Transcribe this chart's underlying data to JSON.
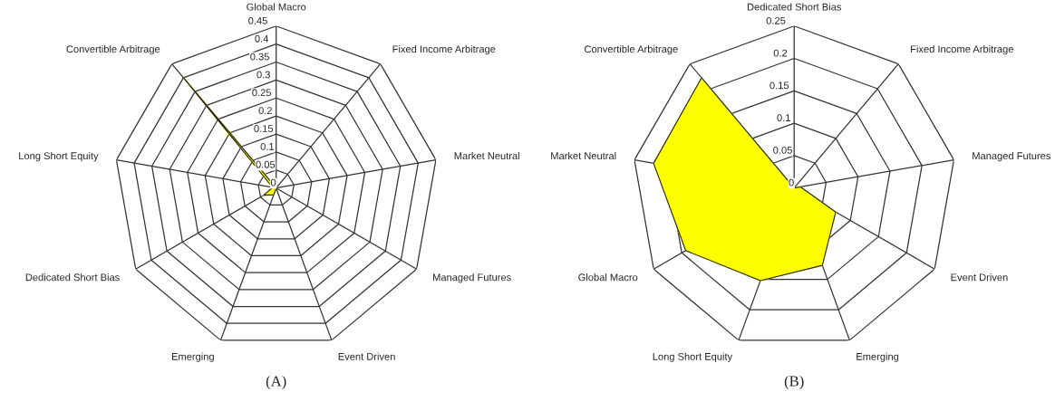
{
  "chart_data": [
    {
      "type": "radar",
      "title": "(A)",
      "categories": [
        "Global Macro",
        "Fixed Income Arbitrage",
        "Market Neutral",
        "Managed Futures",
        "Event Driven",
        "Emerging",
        "Dedicated Short Bias",
        "Long Short Equity",
        "Convertible Arbitrage"
      ],
      "series": [
        {
          "color": "#ffff00",
          "values": [
            0,
            0,
            0,
            0,
            0,
            0.02,
            0.04,
            0.01,
            0.4
          ]
        }
      ],
      "ylim": [
        0,
        0.45
      ],
      "yticks": [
        0,
        0.05,
        0.1,
        0.15,
        0.2,
        0.25,
        0.3,
        0.35,
        0.4,
        0.45
      ],
      "grid": true
    },
    {
      "type": "radar",
      "title": "(B)",
      "categories": [
        "Dedicated Short Bias",
        "Fixed Income Arbitrage",
        "Managed Futures",
        "Event Driven",
        "Emerging",
        "Long Short Equity",
        "Global Macro",
        "Market Neutral",
        "Convertible Arbitrage"
      ],
      "series": [
        {
          "color": "#ffff00",
          "values": [
            0,
            0,
            0.01,
            0.074,
            0.127,
            0.152,
            0.193,
            0.22,
            0.222
          ]
        }
      ],
      "ylim": [
        0,
        0.25
      ],
      "yticks": [
        0,
        0.05,
        0.1,
        0.15,
        0.2,
        0.25
      ],
      "grid": true
    }
  ]
}
